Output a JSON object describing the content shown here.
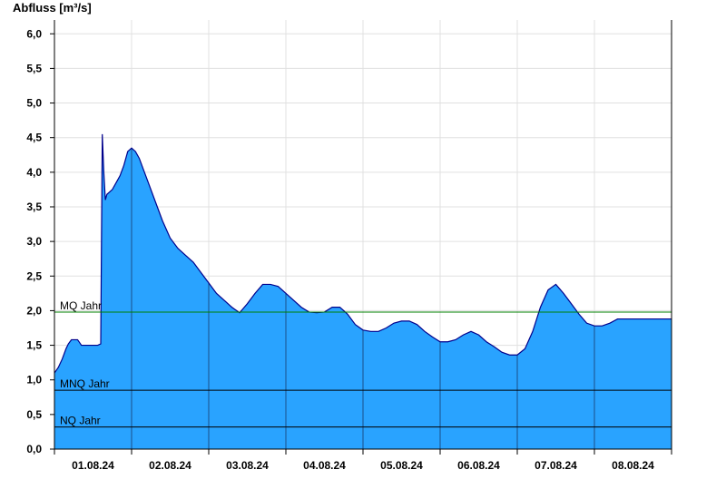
{
  "chart_data": {
    "type": "area",
    "ylabel": "Abfluss [m³/s]",
    "ylim": [
      0,
      6.2
    ],
    "y_ticks": [
      "0,0",
      "0,5",
      "1,0",
      "1,5",
      "2,0",
      "2,5",
      "3,0",
      "3,5",
      "4,0",
      "4,5",
      "5,0",
      "5,5",
      "6,0"
    ],
    "x_ticks": [
      "01.08.24",
      "02.08.24",
      "03.08.24",
      "04.08.24",
      "05.08.24",
      "06.08.24",
      "07.08.24",
      "08.08.24"
    ],
    "x_range_days": [
      0,
      8
    ],
    "grid": true,
    "colors": {
      "fill": "#29a3ff",
      "outline": "#00008b",
      "mq_line": "#008000",
      "ref_line": "#000000",
      "grid": "#e0e0e0"
    },
    "reference_lines": [
      {
        "label": "MQ Jahr",
        "value": 1.98,
        "color": "#008000"
      },
      {
        "label": "MNQ Jahr",
        "value": 0.85,
        "color": "#000000"
      },
      {
        "label": "NQ Jahr",
        "value": 0.32,
        "color": "#000000"
      }
    ],
    "series": [
      {
        "x": [
          0.0,
          0.05,
          0.1,
          0.15,
          0.18,
          0.22,
          0.25,
          0.3,
          0.35,
          0.4,
          0.45,
          0.48,
          0.52,
          0.56,
          0.6,
          0.62,
          0.64,
          0.66,
          0.68,
          0.7,
          0.72,
          0.75,
          0.8,
          0.85,
          0.9,
          0.95,
          1.0,
          1.05,
          1.1,
          1.15,
          1.2,
          1.3,
          1.4,
          1.5,
          1.6,
          1.7,
          1.8,
          1.9,
          2.0,
          2.1,
          2.2,
          2.3,
          2.4,
          2.5,
          2.6,
          2.7,
          2.8,
          2.9,
          3.0,
          3.1,
          3.2,
          3.3,
          3.4,
          3.5,
          3.6,
          3.7,
          3.8,
          3.9,
          4.0,
          4.1,
          4.2,
          4.3,
          4.4,
          4.5,
          4.6,
          4.7,
          4.8,
          4.9,
          5.0,
          5.1,
          5.2,
          5.3,
          5.4,
          5.5,
          5.6,
          5.7,
          5.8,
          5.9,
          6.0,
          6.1,
          6.2,
          6.3,
          6.4,
          6.5,
          6.6,
          6.7,
          6.8,
          6.9,
          7.0,
          7.1,
          7.2,
          7.3,
          7.4,
          7.5,
          7.6,
          7.7,
          7.8,
          7.9,
          8.0
        ],
        "values": [
          1.1,
          1.18,
          1.3,
          1.45,
          1.52,
          1.58,
          1.58,
          1.58,
          1.5,
          1.5,
          1.5,
          1.5,
          1.5,
          1.5,
          1.52,
          4.55,
          4.0,
          3.6,
          3.68,
          3.7,
          3.72,
          3.75,
          3.85,
          3.95,
          4.1,
          4.3,
          4.35,
          4.3,
          4.2,
          4.05,
          3.9,
          3.6,
          3.3,
          3.05,
          2.9,
          2.8,
          2.7,
          2.55,
          2.4,
          2.25,
          2.15,
          2.05,
          1.97,
          2.1,
          2.25,
          2.38,
          2.38,
          2.35,
          2.25,
          2.15,
          2.05,
          1.98,
          1.97,
          1.98,
          2.05,
          2.05,
          1.95,
          1.8,
          1.72,
          1.7,
          1.7,
          1.75,
          1.82,
          1.85,
          1.85,
          1.8,
          1.7,
          1.62,
          1.55,
          1.55,
          1.58,
          1.65,
          1.7,
          1.65,
          1.55,
          1.48,
          1.4,
          1.36,
          1.36,
          1.45,
          1.7,
          2.05,
          2.3,
          2.38,
          2.25,
          2.1,
          1.95,
          1.82,
          1.78,
          1.78,
          1.82,
          1.88,
          1.88,
          1.88,
          1.88,
          1.88,
          1.88,
          1.88,
          1.88
        ]
      }
    ]
  }
}
